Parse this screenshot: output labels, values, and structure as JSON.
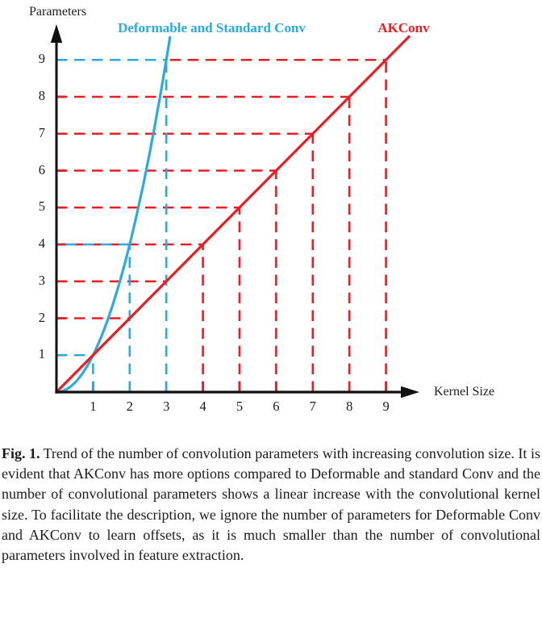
{
  "chart_data": {
    "type": "line",
    "title": "",
    "xlabel": "Kernel Size",
    "ylabel": "Parameters",
    "xlim": [
      0,
      10
    ],
    "ylim": [
      0,
      10
    ],
    "xticks": [
      1,
      2,
      3,
      4,
      5,
      6,
      7,
      8,
      9
    ],
    "yticks": [
      1,
      2,
      3,
      4,
      5,
      6,
      7,
      8,
      9
    ],
    "grid": false,
    "legend_position": "top-inline",
    "series": [
      {
        "name": "Deformable and Standard Conv",
        "color": "#29ABE2",
        "relation": "parameters = kernel_size^2 (quadratic)",
        "x": [
          0,
          1,
          2,
          3
        ],
        "y": [
          0,
          1,
          4,
          9
        ],
        "draw_to_x": 3.1
      },
      {
        "name": "AKConv",
        "color": "#ED1C24",
        "relation": "parameters = kernel_size (linear)",
        "x": [
          0,
          1,
          2,
          3,
          4,
          5,
          6,
          7,
          8,
          9
        ],
        "y": [
          0,
          1,
          2,
          3,
          4,
          5,
          6,
          7,
          8,
          9
        ],
        "draw_to_x": 9.63
      }
    ],
    "guide_lines": {
      "dash_pattern": [
        13.5,
        8.5
      ],
      "cyan_horizontal": [
        [
          1,
          0,
          1,
          0
        ],
        [
          4,
          0,
          2,
          11
        ],
        [
          9,
          0,
          3,
          0
        ]
      ],
      "cyan_vertical": [
        [
          1,
          0,
          1
        ],
        [
          2,
          0,
          4
        ],
        [
          3,
          0,
          9
        ]
      ],
      "red_horizontal": [
        [
          2,
          0,
          2
        ],
        [
          3,
          0,
          3
        ],
        [
          4,
          0,
          4
        ],
        [
          5,
          0,
          5
        ],
        [
          6,
          0,
          6
        ],
        [
          7,
          0,
          7
        ],
        [
          8,
          0,
          8
        ],
        [
          9,
          3.1,
          9
        ]
      ],
      "red_vertical": [
        [
          4,
          0,
          4
        ],
        [
          5,
          0,
          5
        ],
        [
          6,
          0,
          6
        ],
        [
          7,
          0,
          7
        ],
        [
          8,
          0,
          8
        ],
        [
          9,
          0,
          9
        ]
      ]
    }
  },
  "caption": {
    "label": "Fig. 1.",
    "text": "Trend of the number of convolution parameters with increasing convolution size. It is evident that AKConv has more options compared to Deformable and standard Conv and the number of convolutional parameters shows a linear increase with the convolutional kernel size. To facilitate the description, we ignore the number of parameters for Deformable Conv and AKConv to learn offsets, as it is much smaller than the number of convolutional parameters involved in feature extraction."
  },
  "colors": {
    "cyan": "#29ABE2",
    "red": "#ED1C24",
    "axis": "#111111",
    "text": "#1C1C1C"
  }
}
